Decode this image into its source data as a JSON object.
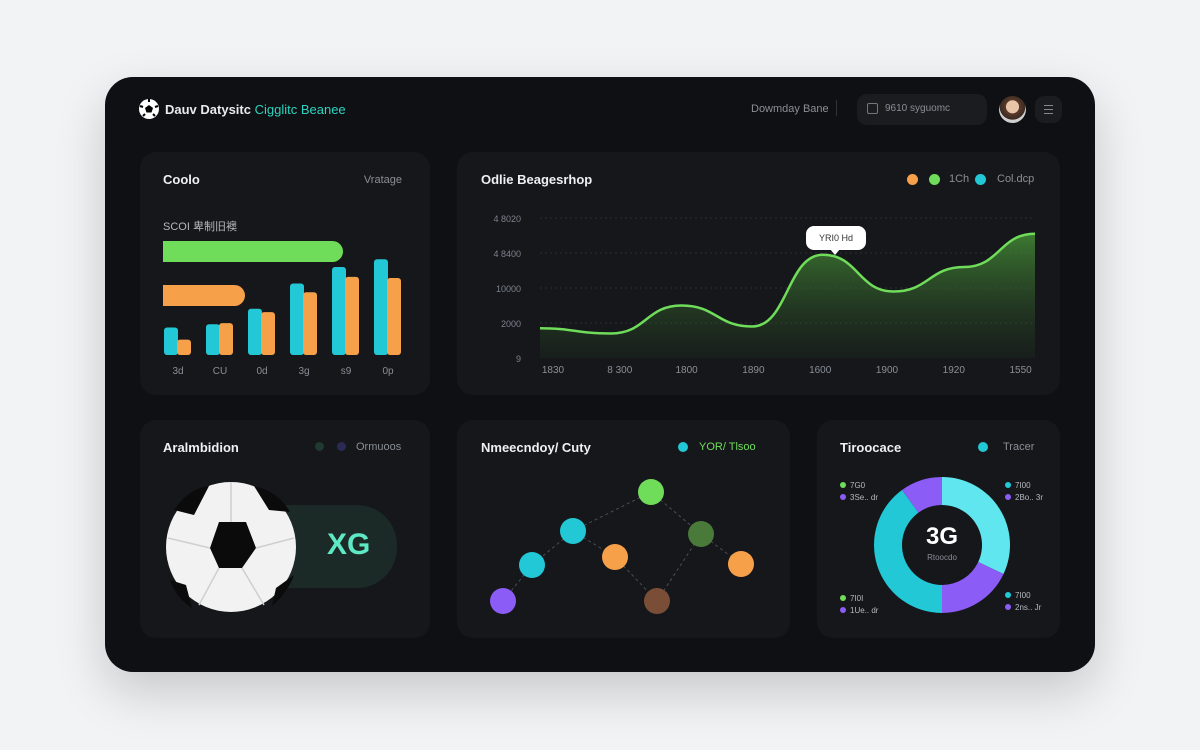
{
  "header": {
    "brand_part1": "Dauv Datysitc",
    "brand_part2": "Cigglitc Beanee",
    "nav_link": "Dowmday Bane",
    "search_placeholder": "9610 syguomc",
    "logo_icon": "soccer-ball-icon",
    "search_icon": "search-icon",
    "menu_icon": "menu-icon"
  },
  "colors": {
    "green": "#6fdc5a",
    "orange": "#f7a04a",
    "cyan": "#22c8d6",
    "light_cyan": "#5fe6ee",
    "purple": "#8b5cf6",
    "brown": "#7a4e36",
    "dark_green": "#4a7a3a",
    "accent_text": "#2dd4bf"
  },
  "card_bars": {
    "title": "Coolo",
    "action": "Vratage",
    "subtitle": "SCOI 卑制旧襖",
    "progress": [
      {
        "color": "green",
        "value": 0.62
      },
      {
        "color": "orange",
        "value": 0.28
      }
    ],
    "chart_data": {
      "type": "bar",
      "categories": [
        "3d",
        "CU",
        "0d",
        "3g",
        "s9",
        "0p"
      ],
      "series": [
        {
          "color": "#22c8d6",
          "values": [
            25,
            28,
            42,
            65,
            80,
            87
          ]
        },
        {
          "color": "#f7a04a",
          "values": [
            14,
            29,
            39,
            57,
            71,
            70
          ]
        }
      ],
      "ylim": [
        0,
        100
      ]
    }
  },
  "card_line": {
    "title": "Odlie Beagesrhop",
    "legend": [
      {
        "color": "#f7a04a",
        "label": ""
      },
      {
        "color": "#6fdc5a",
        "label": "1Ch"
      },
      {
        "color": "#22c8d6",
        "label": "Col.dcp"
      }
    ],
    "tooltip": "YRI0 Hd",
    "chart_data": {
      "type": "area",
      "x": [
        "1830",
        "8 300",
        "1800",
        "1890",
        "1600",
        "1900",
        "1920",
        "1550"
      ],
      "yticks": [
        "9",
        "2000",
        "10000",
        "4 8400",
        "4 8020"
      ],
      "y": [
        0.85,
        0.7,
        1.5,
        0.9,
        2.95,
        1.9,
        2.6,
        3.55
      ],
      "ylim": [
        0,
        4
      ],
      "grid": true
    }
  },
  "card_xg": {
    "title": "Aralmbidion",
    "legend": "Ormuoos",
    "badge": "XG",
    "ball_icon": "soccer-ball-icon"
  },
  "card_network": {
    "title": "Nmeecndoy/ Cuty",
    "legend": "YOR/ Tlsoo",
    "nodes": [
      "green",
      "cyan",
      "dark_green",
      "orange",
      "cyan",
      "orange",
      "purple",
      "brown"
    ]
  },
  "card_donut": {
    "title": "Tiroocace",
    "legend": "Tracer",
    "center_value": "3G",
    "center_label": "Rtoocdo",
    "chart_data": {
      "type": "pie",
      "values": [
        32,
        18,
        40,
        10
      ],
      "colors": [
        "#5fe6ee",
        "#8b5cf6",
        "#22c8d6",
        "#8b5cf6"
      ]
    },
    "labels": [
      {
        "a": "7G0",
        "b": "3Se.. dr"
      },
      {
        "a": "7I00",
        "b": "2Bo.. 3r"
      },
      {
        "a": "7I0I",
        "b": "1Ue.. dr"
      },
      {
        "a": "7I00",
        "b": "2ns.. Jr"
      }
    ]
  }
}
